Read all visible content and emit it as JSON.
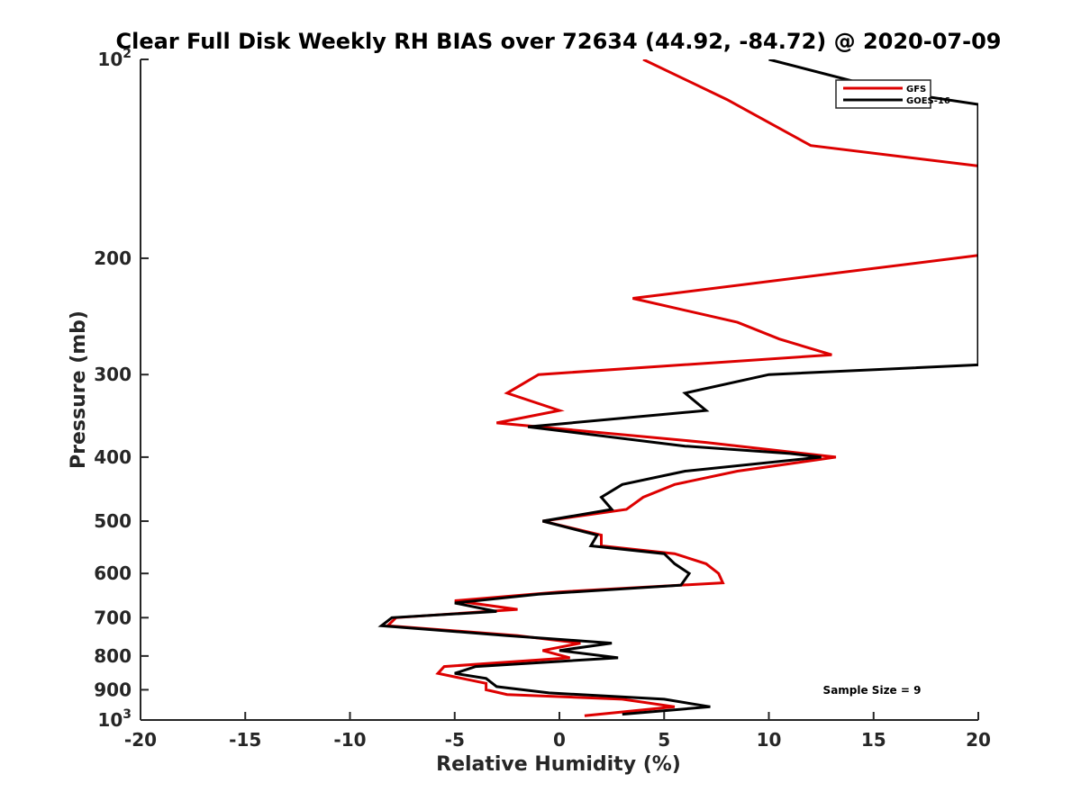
{
  "chart_data": {
    "type": "line",
    "title": "Clear Full Disk Weekly RH BIAS over 72634 (44.92, -84.72) @ 2020-07-09",
    "xlabel": "Relative Humidity (%)",
    "ylabel": "Pressure (mb)",
    "xlim": [
      -20,
      20
    ],
    "ylim": [
      100,
      1000
    ],
    "yscale": "log",
    "y_reversed": true,
    "x_ticks": [
      -20,
      -15,
      -10,
      -5,
      0,
      5,
      10,
      15,
      20
    ],
    "x_tick_labels": [
      "-20",
      "-15",
      "-10",
      "-5",
      "0",
      "5",
      "10",
      "15",
      "20"
    ],
    "y_ticks": [
      100,
      200,
      300,
      400,
      500,
      600,
      700,
      800,
      900,
      1000
    ],
    "y_tick_labels": [
      {
        "base": "10",
        "sup": "2"
      },
      {
        "base": "200",
        "sup": ""
      },
      {
        "base": "300",
        "sup": ""
      },
      {
        "base": "400",
        "sup": ""
      },
      {
        "base": "500",
        "sup": ""
      },
      {
        "base": "600",
        "sup": ""
      },
      {
        "base": "700",
        "sup": ""
      },
      {
        "base": "800",
        "sup": ""
      },
      {
        "base": "900",
        "sup": ""
      },
      {
        "base": "10",
        "sup": "3"
      }
    ],
    "legend_position": "top-right",
    "annotation": "Sample Size = 9",
    "series": [
      {
        "name": "GFS",
        "color": "#dd0000",
        "points": [
          [
            4,
            100
          ],
          [
            8,
            115
          ],
          [
            12,
            135
          ],
          [
            20,
            145
          ],
          [
            20,
            198
          ],
          [
            3.5,
            230
          ],
          [
            8.5,
            250
          ],
          [
            10.5,
            265
          ],
          [
            13,
            280
          ],
          [
            -1,
            300
          ],
          [
            -2.5,
            320
          ],
          [
            0,
            340
          ],
          [
            -3,
            355
          ],
          [
            7,
            380
          ],
          [
            13.2,
            400
          ],
          [
            8.5,
            420
          ],
          [
            5.5,
            440
          ],
          [
            4,
            460
          ],
          [
            3.2,
            480
          ],
          [
            -0.8,
            500
          ],
          [
            2,
            525
          ],
          [
            2,
            545
          ],
          [
            5.5,
            560
          ],
          [
            7,
            580
          ],
          [
            7.6,
            600
          ],
          [
            7.8,
            620
          ],
          [
            0,
            640
          ],
          [
            -5,
            660
          ],
          [
            -2,
            680
          ],
          [
            -7.8,
            700
          ],
          [
            -8.2,
            720
          ],
          [
            -2,
            745
          ],
          [
            1,
            765
          ],
          [
            -0.8,
            785
          ],
          [
            0.5,
            805
          ],
          [
            -5.5,
            830
          ],
          [
            -5.8,
            850
          ],
          [
            -3.5,
            880
          ],
          [
            -3.5,
            900
          ],
          [
            -2.5,
            915
          ],
          [
            3,
            930
          ],
          [
            5.5,
            955
          ],
          [
            1.2,
            985
          ]
        ]
      },
      {
        "name": "GOES-16",
        "color": "#000000",
        "points": [
          [
            10,
            100
          ],
          [
            16,
            112
          ],
          [
            20,
            117
          ],
          [
            20,
            290
          ],
          [
            10,
            300
          ],
          [
            6,
            320
          ],
          [
            7,
            340
          ],
          [
            -1.5,
            360
          ],
          [
            6,
            385
          ],
          [
            11,
            395
          ],
          [
            12.5,
            400
          ],
          [
            6,
            420
          ],
          [
            3,
            440
          ],
          [
            2,
            460
          ],
          [
            2.5,
            480
          ],
          [
            -0.8,
            500
          ],
          [
            1.8,
            525
          ],
          [
            1.5,
            545
          ],
          [
            5,
            560
          ],
          [
            5.5,
            580
          ],
          [
            6.2,
            600
          ],
          [
            5.8,
            625
          ],
          [
            -1,
            645
          ],
          [
            -5,
            665
          ],
          [
            -3,
            685
          ],
          [
            -8,
            700
          ],
          [
            -8.5,
            720
          ],
          [
            -2.5,
            745
          ],
          [
            2.5,
            765
          ],
          [
            0,
            785
          ],
          [
            2.8,
            805
          ],
          [
            -4,
            830
          ],
          [
            -5,
            850
          ],
          [
            -3.5,
            865
          ],
          [
            -3,
            890
          ],
          [
            -0.5,
            910
          ],
          [
            5,
            930
          ],
          [
            7.2,
            955
          ],
          [
            3,
            980
          ]
        ]
      }
    ]
  }
}
